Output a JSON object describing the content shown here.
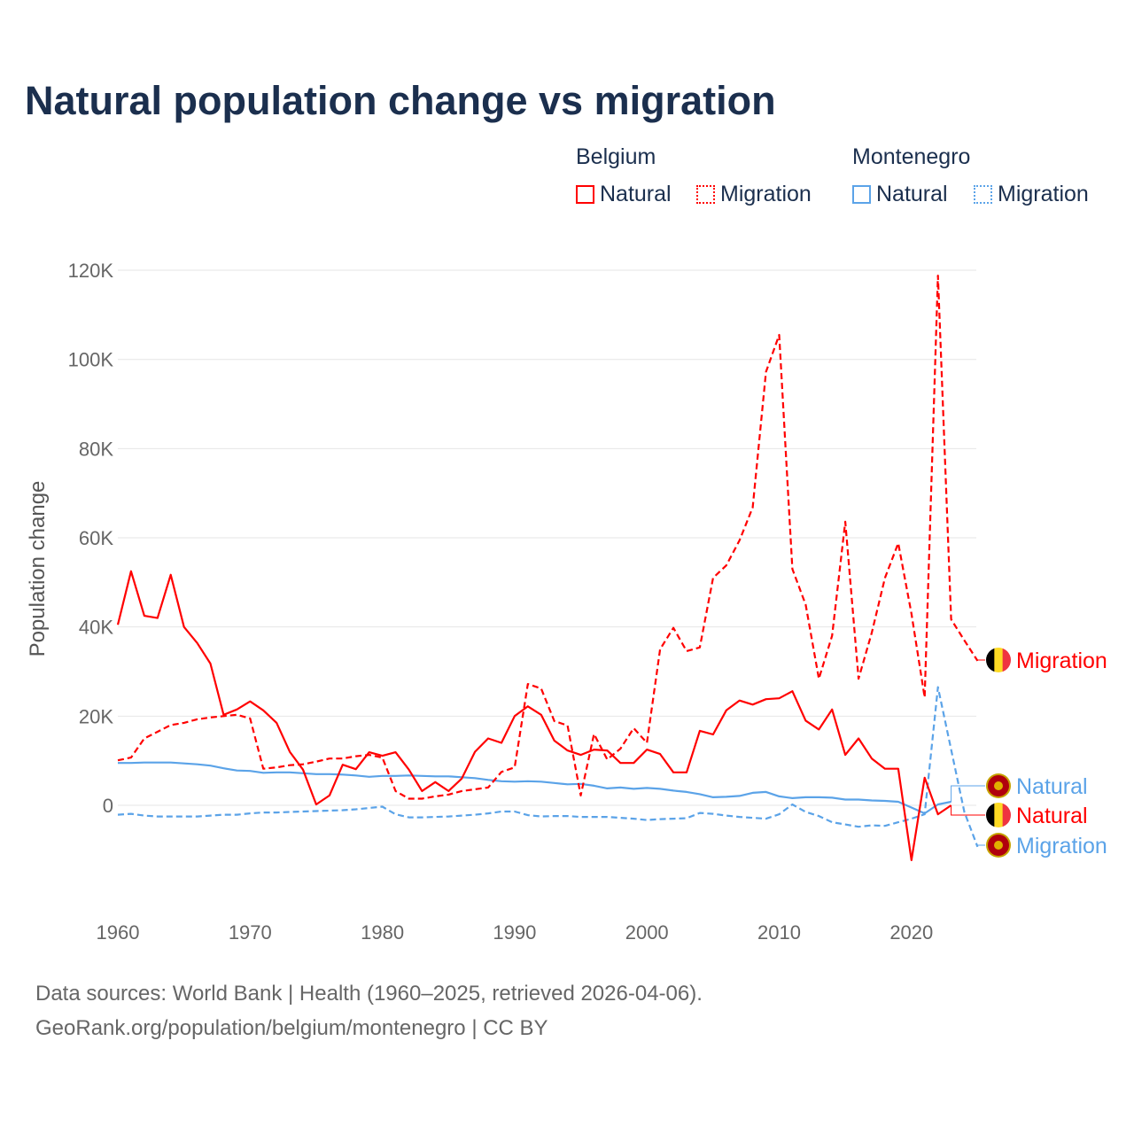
{
  "title": "Natural population change vs migration",
  "legend": {
    "groups": [
      {
        "name": "Belgium",
        "items": [
          {
            "label": "Natural",
            "style": "solid",
            "color": "#ff0000"
          },
          {
            "label": "Migration",
            "style": "dotted",
            "color": "#ff0000"
          }
        ]
      },
      {
        "name": "Montenegro",
        "items": [
          {
            "label": "Natural",
            "style": "solid",
            "color": "#5ba3e8"
          },
          {
            "label": "Migration",
            "style": "dotted",
            "color": "#5ba3e8"
          }
        ]
      }
    ]
  },
  "footer": {
    "line1": "Data sources: World Bank | Health (1960–2025, retrieved 2026-04-06).",
    "line2": "GeoRank.org/population/belgium/montenegro | CC BY"
  },
  "chart_data": {
    "type": "line",
    "title": "Natural population change vs migration",
    "xlabel": "",
    "ylabel": "Population change",
    "xlim": [
      1960,
      2025
    ],
    "ylim": [
      -20000,
      120000
    ],
    "xticks": [
      1960,
      1970,
      1980,
      1990,
      2000,
      2010,
      2020
    ],
    "xtick_labels": [
      "1960",
      "1970",
      "1980",
      "1990",
      "2000",
      "2010",
      "2020"
    ],
    "yticks": [
      0,
      20000,
      40000,
      60000,
      80000,
      100000,
      120000
    ],
    "ytick_labels": [
      "0",
      "20K",
      "40K",
      "60K",
      "80K",
      "100K",
      "120K"
    ],
    "grid": true,
    "legend_position": "top-right",
    "series": [
      {
        "name": "Belgium Natural",
        "end_label": "Natural",
        "country": "Belgium",
        "color": "#ff0000",
        "dash": false,
        "start_year": 1960,
        "values": [
          40500,
          52500,
          42500,
          42000,
          51700,
          40000,
          36400,
          31800,
          20300,
          21500,
          23300,
          21300,
          18500,
          12000,
          8000,
          200,
          2200,
          9100,
          8100,
          11900,
          11100,
          11900,
          8000,
          3200,
          5200,
          3200,
          6000,
          12000,
          15000,
          14000,
          20000,
          22200,
          20300,
          14500,
          12300,
          11300,
          12500,
          12300,
          9500,
          9500,
          12500,
          11500,
          7400,
          7400,
          16700,
          15900,
          21300,
          23500,
          22600,
          23800,
          24000,
          25600,
          19000,
          17000,
          21500,
          11300,
          15000,
          10500,
          8200,
          8200,
          -12300,
          6200,
          -2000,
          0
        ]
      },
      {
        "name": "Belgium Migration",
        "end_label": "Migration",
        "country": "Belgium",
        "color": "#ff0000",
        "dash": true,
        "start_year": 1960,
        "values": [
          10100,
          10700,
          15000,
          16500,
          18000,
          18500,
          19300,
          19700,
          20000,
          20300,
          19500,
          8200,
          8500,
          9000,
          9200,
          9800,
          10500,
          10500,
          11000,
          11300,
          10700,
          3200,
          1500,
          1500,
          2000,
          2400,
          3200,
          3600,
          4000,
          7500,
          8500,
          27200,
          26200,
          18900,
          17900,
          2200,
          16000,
          10300,
          12700,
          17300,
          14000,
          35000,
          39800,
          34600,
          35400,
          51000,
          53800,
          59400,
          66800,
          97200,
          105500,
          53000,
          45000,
          28400,
          38000,
          63600,
          28400,
          38700,
          51000,
          58800,
          43000,
          24200,
          118800,
          41700,
          37000,
          32400
        ]
      },
      {
        "name": "Montenegro Natural",
        "end_label": "Natural",
        "country": "Montenegro",
        "color": "#5ba3e8",
        "dash": false,
        "start_year": 1960,
        "values": [
          9500,
          9500,
          9600,
          9600,
          9600,
          9400,
          9200,
          8900,
          8300,
          7800,
          7700,
          7300,
          7400,
          7400,
          7200,
          7000,
          7000,
          6900,
          6700,
          6400,
          6600,
          6600,
          6700,
          6600,
          6500,
          6500,
          6300,
          6100,
          5700,
          5400,
          5300,
          5400,
          5300,
          5000,
          4700,
          4800,
          4400,
          3800,
          4000,
          3700,
          3900,
          3700,
          3300,
          3000,
          2500,
          1800,
          1900,
          2100,
          2800,
          3000,
          2000,
          1600,
          1800,
          1800,
          1700,
          1300,
          1300,
          1100,
          1000,
          800,
          -500,
          -1800,
          200,
          800
        ]
      },
      {
        "name": "Montenegro Migration",
        "end_label": "Migration",
        "country": "Montenegro",
        "color": "#5ba3e8",
        "dash": true,
        "start_year": 1960,
        "values": [
          -2100,
          -1900,
          -2300,
          -2500,
          -2500,
          -2500,
          -2500,
          -2300,
          -2100,
          -2100,
          -1800,
          -1600,
          -1600,
          -1500,
          -1400,
          -1300,
          -1200,
          -1100,
          -900,
          -600,
          -300,
          -2000,
          -2700,
          -2700,
          -2600,
          -2500,
          -2300,
          -2100,
          -1800,
          -1400,
          -1400,
          -2200,
          -2500,
          -2400,
          -2400,
          -2600,
          -2600,
          -2600,
          -2800,
          -3000,
          -3300,
          -3100,
          -3000,
          -2900,
          -1700,
          -1900,
          -2300,
          -2600,
          -2800,
          -3000,
          -2000,
          200,
          -1500,
          -2400,
          -3800,
          -4300,
          -4800,
          -4500,
          -4600,
          -3800,
          -3000,
          -2000,
          26500,
          12500,
          -1500,
          -9300
        ]
      }
    ]
  }
}
